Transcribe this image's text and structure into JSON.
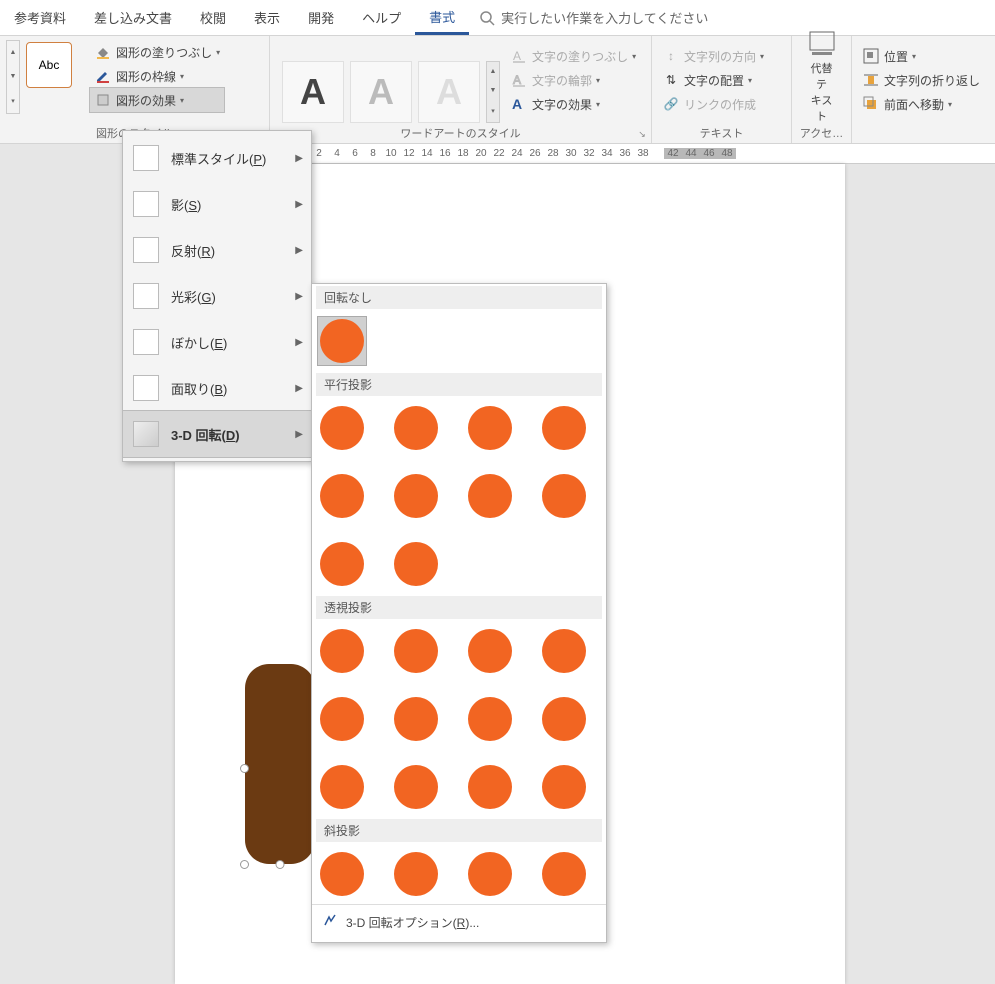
{
  "tabs": {
    "references": "参考資料",
    "mailings": "差し込み文書",
    "review": "校閲",
    "view": "表示",
    "developer": "開発",
    "help": "ヘルプ",
    "format": "書式",
    "search_hint": "実行したい作業を入力してください"
  },
  "ribbon": {
    "shape_styles_label": "図形のスタイル",
    "abc": "Abc",
    "shape_fill": "図形の塗りつぶし",
    "shape_outline": "図形の枠線",
    "shape_effects": "図形の効果",
    "wordart_label": "ワードアートのスタイル",
    "text_fill": "文字の塗りつぶし",
    "text_outline": "文字の輪郭",
    "text_effects": "文字の効果",
    "text_label": "テキスト",
    "text_direction": "文字列の方向",
    "text_align": "文字の配置",
    "create_link": "リンクの作成",
    "alt_text": "代替テ\nキスト",
    "accessibility_label": "アクセ…",
    "arrange": {
      "position": "位置",
      "wrap": "文字列の折り返し",
      "bring_front": "前面へ移動"
    }
  },
  "effects_menu": {
    "preset": "標準スタイル(P)",
    "shadow": "影(S)",
    "reflection": "反射(R)",
    "glow": "光彩(G)",
    "soft_edges": "ぼかし(E)",
    "bevel": "面取り(B)",
    "rotation_3d": "3-D 回転(D)"
  },
  "gallery": {
    "no_rotation": "回転なし",
    "parallel": "平行投影",
    "perspective": "透視投影",
    "oblique": "斜投影",
    "options": "3-D 回転オプション(R)...",
    "ball_color": "#f26522",
    "counts": {
      "parallel": 10,
      "perspective": 12,
      "oblique": 4
    }
  },
  "ruler": {
    "values": [
      "2",
      "4",
      "6",
      "8",
      "10",
      "12",
      "14",
      "16",
      "18",
      "20",
      "22",
      "24",
      "26",
      "28",
      "30",
      "32",
      "34",
      "36",
      "38"
    ],
    "sel_values": [
      "42",
      "44",
      "46",
      "48"
    ]
  },
  "colors": {
    "accent": "#2b579a",
    "shape_fill": "#6b3a12"
  }
}
